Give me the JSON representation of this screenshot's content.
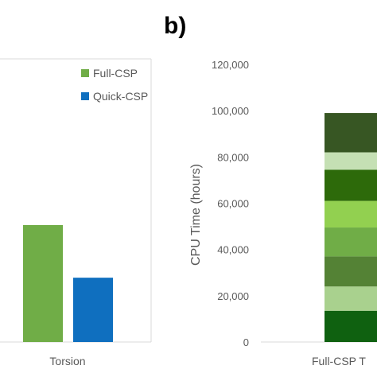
{
  "panel_label": "b)",
  "chart_data": [
    {
      "type": "bar",
      "categories": [
        "Torsion"
      ],
      "series": [
        {
          "name": "Full-CSP",
          "values": [
            null
          ],
          "color": "#70ad47"
        },
        {
          "name": "Quick-CSP",
          "values": [
            null
          ],
          "color": "#0f6fbf"
        }
      ],
      "relative_bar_heights": {
        "Full-CSP": 1.0,
        "Quick-CSP": 0.55
      },
      "legend": "top-right",
      "note": "left panel is cropped; y-axis ticks not visible"
    },
    {
      "type": "bar",
      "stacked": true,
      "categories": [
        "Full-CSP T"
      ],
      "ylabel": "CPU Time (hours)",
      "ylim": [
        0,
        120000
      ],
      "yticks": [
        0,
        20000,
        40000,
        60000,
        80000,
        100000,
        120000
      ],
      "ytick_labels": [
        "0",
        "20,000",
        "40,000",
        "60,000",
        "80,000",
        "100,000",
        "120,000"
      ],
      "segments": [
        {
          "value": 13500,
          "color": "#0f6110"
        },
        {
          "value": 10500,
          "color": "#a9d18e"
        },
        {
          "value": 13000,
          "color": "#548235"
        },
        {
          "value": 12500,
          "color": "#70ad47"
        },
        {
          "value": 11500,
          "color": "#92d050"
        },
        {
          "value": 13500,
          "color": "#2d6a0a"
        },
        {
          "value": 7500,
          "color": "#c5e0b4"
        },
        {
          "value": 17000,
          "color": "#375623"
        }
      ]
    }
  ]
}
